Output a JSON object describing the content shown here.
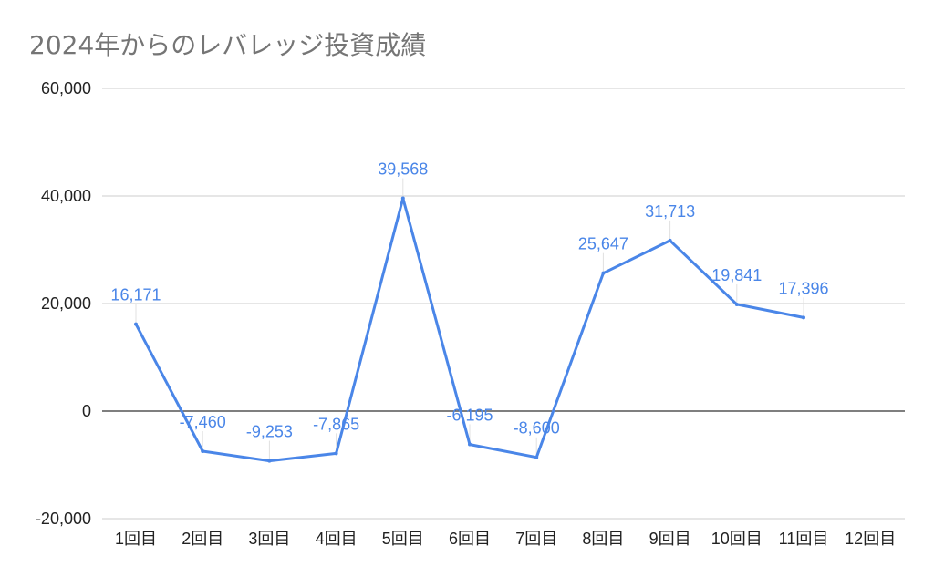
{
  "chart_data": {
    "type": "line",
    "title": "2024年からのレバレッジ投資成績",
    "xlabel": "",
    "ylabel": "",
    "categories": [
      "1回目",
      "2回目",
      "3回目",
      "4回目",
      "5回目",
      "6回目",
      "7回目",
      "8回目",
      "9回目",
      "10回目",
      "11回目",
      "12回目"
    ],
    "series": [
      {
        "values": [
          16171,
          -7460,
          -9253,
          -7865,
          39568,
          -6195,
          -8600,
          25647,
          31713,
          19841,
          17396,
          null
        ],
        "labels": [
          "16,171",
          "-7,460",
          "-9,253",
          "-7,865",
          "39,568",
          "-6,195",
          "-8,600",
          "25,647",
          "31,713",
          "19,841",
          "17,396",
          ""
        ],
        "color": "#4a86e8"
      }
    ],
    "ylim": [
      -20000,
      60000
    ],
    "yticks": [
      {
        "value": -20000,
        "label": "-20,000"
      },
      {
        "value": 0,
        "label": "0"
      },
      {
        "value": 20000,
        "label": "20,000"
      },
      {
        "value": 40000,
        "label": "40,000"
      },
      {
        "value": 60000,
        "label": "60,000"
      }
    ],
    "grid": true,
    "legend": "none",
    "colors": {
      "line": "#4a86e8",
      "data_label": "#4a86e8",
      "gridline": "#cccccc",
      "zero_line": "#333333",
      "leader_line": "#e0e0e0"
    }
  }
}
